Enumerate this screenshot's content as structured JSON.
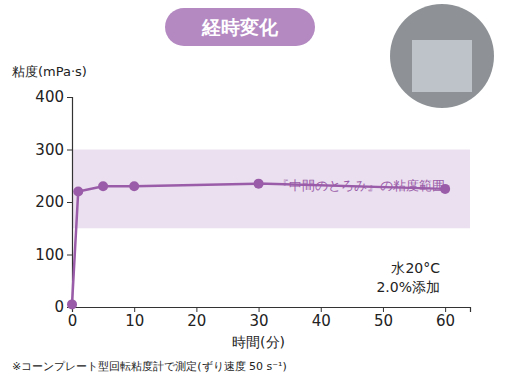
{
  "chart_data": {
    "type": "line",
    "title": "経時変化",
    "y_label": "粘度(mPa·s)",
    "x_label": "時間(分)",
    "x": [
      0,
      1,
      5,
      10,
      30,
      60
    ],
    "values": [
      5,
      220,
      230,
      230,
      235,
      225
    ],
    "color": "#9a5ca8",
    "marker": "circle",
    "xlim": [
      0,
      64
    ],
    "xticks": [
      0,
      10,
      20,
      30,
      40,
      50,
      60
    ],
    "ylim": [
      0,
      400
    ],
    "yticks": [
      0,
      100,
      200,
      300,
      400
    ],
    "grid": false,
    "range_band": {
      "from": 150,
      "to": 300,
      "label": "『中間のとろみ』の粘度範囲"
    },
    "annotations": [
      "水20°C",
      "2.0%添加"
    ],
    "note": "※コーンプレート型回転粘度計で測定(ずり速度 50 s⁻¹)"
  }
}
